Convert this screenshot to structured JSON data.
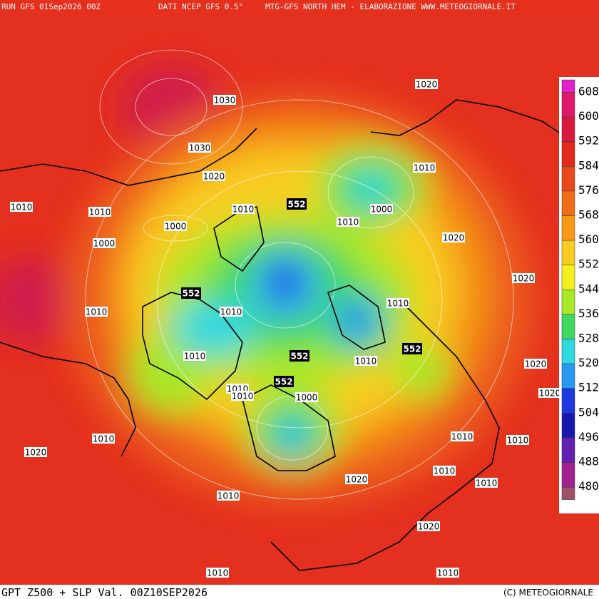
{
  "header": {
    "run": "RUN GFS 01Sep2026 00Z",
    "source": "DATI NCEP GFS 0.5°",
    "title": "MTG-GFS NORTH HEM - ELABORAZIONE WWW.METEOGIORNALE.IT"
  },
  "footer": {
    "product": "GPT Z500 + SLP Val. 00Z10SEP2026",
    "copyright": "(C) METEOGIORNALE"
  },
  "colorbar": {
    "labels": [
      608,
      600,
      592,
      584,
      576,
      568,
      560,
      552,
      544,
      536,
      528,
      520,
      512,
      504,
      496,
      488,
      480
    ],
    "colors": [
      "#e020c8",
      "#e0186c",
      "#d8183c",
      "#e02a1e",
      "#e8481a",
      "#f06c18",
      "#f89a18",
      "#f8cc20",
      "#f4f020",
      "#a8e828",
      "#40d860",
      "#30d8e0",
      "#2898f0",
      "#1c38e0",
      "#1818b0",
      "#6020b0",
      "#a02090",
      "#a05068"
    ]
  },
  "slp_labels": [
    1020,
    1030,
    1030,
    1020,
    1010,
    1010,
    1010,
    1010,
    1000,
    1010,
    1000,
    1000,
    1020,
    1020,
    1010,
    1010,
    1010,
    1010,
    1010,
    1020,
    1010,
    1010,
    1000,
    1020,
    1010,
    1010,
    1010,
    1020,
    1010,
    1010,
    1020,
    1010,
    1020,
    1010,
    1010
  ],
  "z500_labels": [
    552,
    552,
    552,
    552,
    552
  ]
}
